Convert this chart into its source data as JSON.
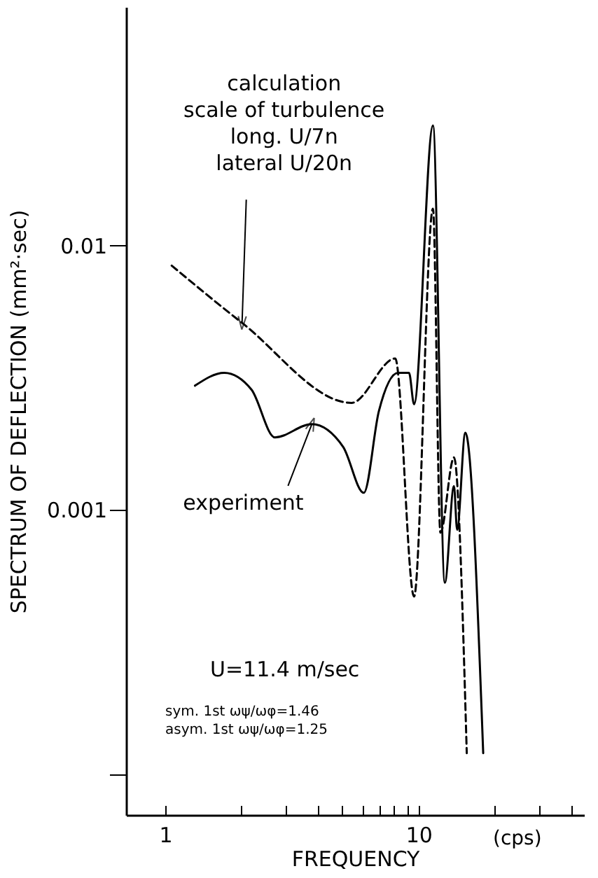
{
  "chart_data": {
    "type": "line",
    "xlabel": "FREQUENCY",
    "ylabel": "SPECTRUM OF DEFLECTION (mm²·sec)",
    "log": "xy",
    "grid": false,
    "marker": "none",
    "xlim": [
      0.7,
      45
    ],
    "xticks": [
      1,
      {
        "value": 2,
        "label": null
      },
      {
        "value": 3,
        "label": null
      },
      {
        "value": 4,
        "label": null
      },
      {
        "value": 5,
        "label": null
      },
      {
        "value": 6,
        "label": null
      },
      {
        "value": 7,
        "label": null
      },
      {
        "value": 8,
        "label": null
      },
      {
        "value": 9,
        "label": null
      },
      10,
      {
        "value": 20,
        "label": null
      },
      {
        "value": 30,
        "label": null
      },
      {
        "value": 40,
        "label": null
      }
    ],
    "ylim": [
      7e-05,
      0.08
    ],
    "yticks": [
      {
        "value": 0.0001,
        "label": null
      },
      0.001,
      0.01
    ],
    "series": [
      {
        "color": "#000000",
        "line_style": "dashed",
        "x": [
          1.06,
          2.01,
          5.44,
          8.09,
          9.6,
          11.4,
          12.2,
          13.8,
          15.5
        ],
        "values": [
          0.0084,
          0.0051,
          0.00254,
          0.00374,
          0.00047,
          0.0138,
          0.00082,
          0.00158,
          0.00012
        ]
      },
      {
        "color": "#000000",
        "line_style": "solid",
        "x": [
          1.31,
          1.71,
          2.19,
          2.71,
          3.79,
          5.04,
          6.08,
          6.97,
          8.3,
          9.17,
          9.6,
          11.4,
          12.7,
          13.8,
          14.2,
          15.3,
          18.0
        ],
        "values": [
          0.00295,
          0.0033,
          0.00285,
          0.00188,
          0.00211,
          0.00173,
          0.00116,
          0.00236,
          0.0033,
          0.0033,
          0.00251,
          0.0285,
          0.00053,
          0.00123,
          0.00084,
          0.00196,
          0.00012
        ]
      }
    ],
    "annotations": [
      {
        "text": "calculation\nscale of turbulence\nlong.   U/7n\nlateral  U/20n",
        "x": 2.01,
        "y": 0.0051
      },
      {
        "text": "experiment",
        "x": 3.79,
        "y": 0.00211
      },
      "U=11.4 m/sec",
      "sym. 1st ωψ/ωφ=1.46",
      "asym. 1st ωψ/ωφ=1.25",
      "(cps)"
    ]
  }
}
